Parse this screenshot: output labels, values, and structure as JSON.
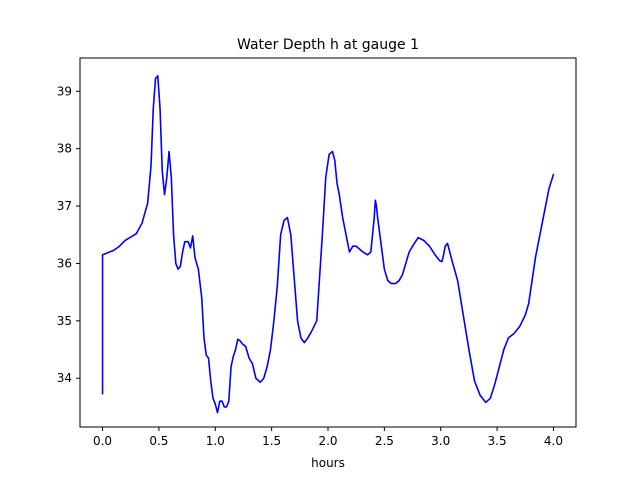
{
  "chart_data": {
    "type": "line",
    "title": "Water Depth h at gauge 1",
    "xlabel": "hours",
    "ylabel": "",
    "xlim": [
      -0.2,
      4.2
    ],
    "ylim": [
      33.15,
      39.58
    ],
    "xticks": [
      0.0,
      0.5,
      1.0,
      1.5,
      2.0,
      2.5,
      3.0,
      3.5,
      4.0
    ],
    "xtick_labels": [
      "0.0",
      "0.5",
      "1.0",
      "1.5",
      "2.0",
      "2.5",
      "3.0",
      "3.5",
      "4.0"
    ],
    "yticks": [
      34,
      35,
      36,
      37,
      38,
      39
    ],
    "ytick_labels": [
      "34",
      "35",
      "36",
      "37",
      "38",
      "39"
    ],
    "grid": false,
    "series": [
      {
        "color": "#0000ff",
        "x": [
          0.0,
          0.0,
          0.1,
          0.15,
          0.2,
          0.25,
          0.3,
          0.35,
          0.4,
          0.43,
          0.45,
          0.47,
          0.49,
          0.51,
          0.53,
          0.55,
          0.57,
          0.59,
          0.61,
          0.63,
          0.65,
          0.67,
          0.69,
          0.71,
          0.73,
          0.76,
          0.78,
          0.8,
          0.82,
          0.85,
          0.88,
          0.9,
          0.92,
          0.94,
          0.96,
          0.98,
          1.0,
          1.02,
          1.04,
          1.06,
          1.08,
          1.1,
          1.12,
          1.14,
          1.16,
          1.18,
          1.2,
          1.22,
          1.24,
          1.27,
          1.3,
          1.33,
          1.36,
          1.4,
          1.43,
          1.46,
          1.49,
          1.52,
          1.55,
          1.58,
          1.61,
          1.64,
          1.67,
          1.69,
          1.71,
          1.73,
          1.76,
          1.79,
          1.82,
          1.85,
          1.9,
          1.95,
          1.98,
          2.01,
          2.04,
          2.06,
          2.08,
          2.1,
          2.13,
          2.16,
          2.19,
          2.22,
          2.25,
          2.28,
          2.31,
          2.35,
          2.38,
          2.41,
          2.42,
          2.43,
          2.44,
          2.46,
          2.48,
          2.5,
          2.53,
          2.56,
          2.6,
          2.63,
          2.66,
          2.69,
          2.72,
          2.75,
          2.8,
          2.85,
          2.9,
          2.95,
          2.99,
          3.01,
          3.02,
          3.04,
          3.06,
          3.08,
          3.1,
          3.15,
          3.2,
          3.25,
          3.3,
          3.35,
          3.4,
          3.44,
          3.48,
          3.52,
          3.56,
          3.6,
          3.65,
          3.7,
          3.75,
          3.78,
          3.81,
          3.84,
          3.88,
          3.92,
          3.96,
          4.0
        ],
        "y": [
          33.73,
          36.15,
          36.23,
          36.3,
          36.4,
          36.46,
          36.52,
          36.7,
          37.05,
          37.7,
          38.7,
          39.22,
          39.27,
          38.7,
          37.6,
          37.2,
          37.5,
          37.95,
          37.5,
          36.5,
          36.0,
          35.9,
          35.95,
          36.2,
          36.38,
          36.38,
          36.27,
          36.48,
          36.1,
          35.9,
          35.4,
          34.7,
          34.4,
          34.35,
          33.95,
          33.65,
          33.55,
          33.4,
          33.6,
          33.6,
          33.5,
          33.5,
          33.6,
          34.2,
          34.38,
          34.5,
          34.68,
          34.65,
          34.6,
          34.55,
          34.35,
          34.25,
          34.0,
          33.93,
          34.0,
          34.2,
          34.5,
          35.0,
          35.6,
          36.5,
          36.75,
          36.8,
          36.5,
          36.0,
          35.5,
          35.0,
          34.7,
          34.62,
          34.7,
          34.8,
          35.0,
          36.5,
          37.5,
          37.9,
          37.95,
          37.8,
          37.4,
          37.2,
          36.8,
          36.5,
          36.2,
          36.3,
          36.3,
          36.25,
          36.2,
          36.15,
          36.2,
          36.8,
          37.1,
          37.0,
          36.8,
          36.5,
          36.2,
          35.9,
          35.7,
          35.65,
          35.65,
          35.7,
          35.8,
          36.0,
          36.2,
          36.3,
          36.45,
          36.4,
          36.3,
          36.15,
          36.05,
          36.03,
          36.1,
          36.3,
          36.35,
          36.2,
          36.05,
          35.7,
          35.1,
          34.5,
          33.95,
          33.7,
          33.58,
          33.65,
          33.9,
          34.2,
          34.5,
          34.7,
          34.78,
          34.9,
          35.1,
          35.3,
          35.7,
          36.1,
          36.5,
          36.9,
          37.3,
          37.55
        ]
      }
    ]
  }
}
